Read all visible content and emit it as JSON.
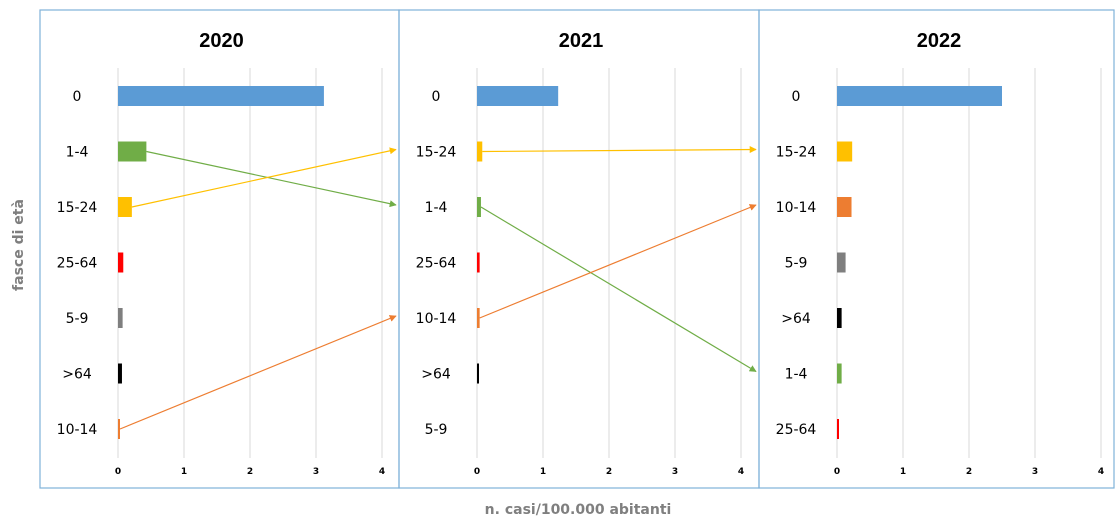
{
  "chart_data": {
    "type": "bar",
    "orientation": "horizontal",
    "xlabel": "n. casi/100.000 abitanti",
    "ylabel": "fasce di età",
    "xlim": [
      0,
      4
    ],
    "xticks": [
      "0",
      "1",
      "2",
      "3",
      "4"
    ],
    "grid": true,
    "category_colors": {
      "0": "#5b9bd5",
      "1-4": "#70ad47",
      "5-9": "#7f7f7f",
      "10-14": "#ed7d31",
      "15-24": "#ffc000",
      "25-64": "#ff0000",
      ">64": "#000000"
    },
    "panels": [
      {
        "title": "2020",
        "categories": [
          "0",
          "1-4",
          "15-24",
          "25-64",
          "5-9",
          ">64",
          "10-14"
        ],
        "values": [
          3.12,
          0.43,
          0.21,
          0.08,
          0.07,
          0.06,
          0.03
        ]
      },
      {
        "title": "2021",
        "categories": [
          "0",
          "15-24",
          "1-4",
          "25-64",
          "10-14",
          ">64",
          "5-9"
        ],
        "values": [
          1.23,
          0.08,
          0.06,
          0.04,
          0.04,
          0.01,
          0.0
        ]
      },
      {
        "title": "2022",
        "categories": [
          "0",
          "15-24",
          "10-14",
          "5-9",
          ">64",
          "1-4",
          "25-64"
        ],
        "values": [
          2.5,
          0.23,
          0.22,
          0.13,
          0.07,
          0.07,
          0.03
        ]
      }
    ],
    "rank_arrows": [
      {
        "category": "1-4",
        "from_panel": 0,
        "from_rank": 1,
        "to_panel": 1,
        "to_rank": 2,
        "color": "#70ad47"
      },
      {
        "category": "15-24",
        "from_panel": 0,
        "from_rank": 2,
        "to_panel": 1,
        "to_rank": 1,
        "color": "#ffc000"
      },
      {
        "category": "10-14",
        "from_panel": 0,
        "from_rank": 6,
        "to_panel": 1,
        "to_rank": 4,
        "color": "#ed7d31"
      },
      {
        "category": "15-24",
        "from_panel": 1,
        "from_rank": 1,
        "to_panel": 2,
        "to_rank": 1,
        "color": "#ffc000"
      },
      {
        "category": "1-4",
        "from_panel": 1,
        "from_rank": 2,
        "to_panel": 2,
        "to_rank": 5,
        "color": "#70ad47"
      },
      {
        "category": "10-14",
        "from_panel": 1,
        "from_rank": 4,
        "to_panel": 2,
        "to_rank": 2,
        "color": "#ed7d31"
      }
    ]
  }
}
